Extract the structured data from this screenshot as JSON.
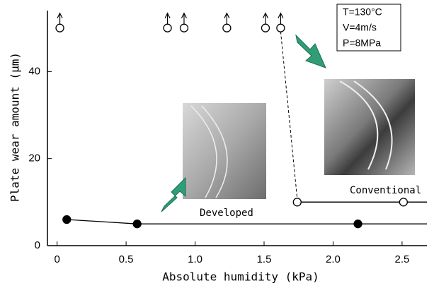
{
  "chart_data": {
    "type": "scatter",
    "x_label": "Absolute humidity (kPa)",
    "y_label": "Plate wear amount (μm)",
    "xlim": [
      -0.07,
      2.68
    ],
    "ylim": [
      0,
      54
    ],
    "xticks": [
      {
        "value": 0,
        "label": "0"
      },
      0.5,
      {
        "value": 1,
        "label": "1.0"
      },
      1.5,
      {
        "value": 2,
        "label": "2.0"
      },
      2.5
    ],
    "yticks": [
      0,
      20,
      40
    ],
    "conditions": [
      "T=130°C",
      "V=4m/s",
      "P=8MPa"
    ],
    "series": [
      {
        "name": "Developed",
        "color": "#000000",
        "marker": "filled",
        "x": [
          0.07,
          0.58,
          2.18
        ],
        "values": [
          6,
          5,
          5
        ]
      },
      {
        "name": "Conventional",
        "color": "#000000",
        "marker": "open",
        "x": [
          1.74,
          2.51
        ],
        "values": [
          10,
          10
        ]
      },
      {
        "color": "#000000",
        "marker": "open-arrow",
        "x": [
          0.02,
          0.8,
          0.92,
          1.23,
          1.51,
          1.62
        ],
        "values": [
          50,
          50,
          50,
          50,
          50,
          50
        ]
      }
    ]
  }
}
